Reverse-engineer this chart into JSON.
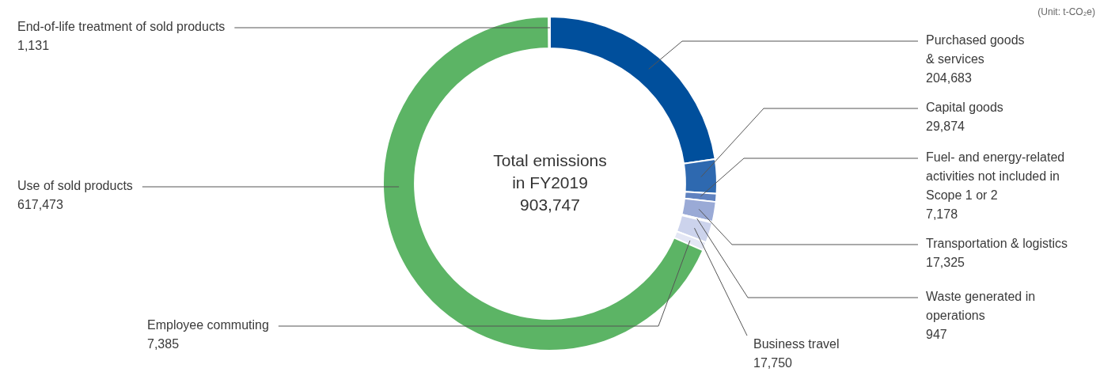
{
  "chart_data": {
    "type": "donut",
    "title": "Total emissions in FY2019",
    "categories": [
      "Purchased goods & services",
      "Capital goods",
      "Fuel- and energy-related activities not included in Scope 1 or 2",
      "Transportation & logistics",
      "Waste generated in operations",
      "Business travel",
      "Employee commuting",
      "Use of sold products",
      "End-of-life treatment of sold products"
    ],
    "values": [
      204683,
      29874,
      7178,
      17325,
      947,
      17750,
      7385,
      617473,
      1131
    ],
    "colors": [
      "#004f9c",
      "#2e69b0",
      "#5f82c0",
      "#9aaad6",
      "#b8c2e4",
      "#ccd3ec",
      "#e4e7f5",
      "#5cb465",
      "#e5d356"
    ],
    "value_labels": [
      "204,683",
      "29,874",
      "7,178",
      "17,325",
      "947",
      "17,750",
      "7,385",
      "617,473",
      "1,131"
    ],
    "legend": false,
    "annotations": [
      "903,747",
      "(Unit: t-CO₂e)"
    ]
  }
}
